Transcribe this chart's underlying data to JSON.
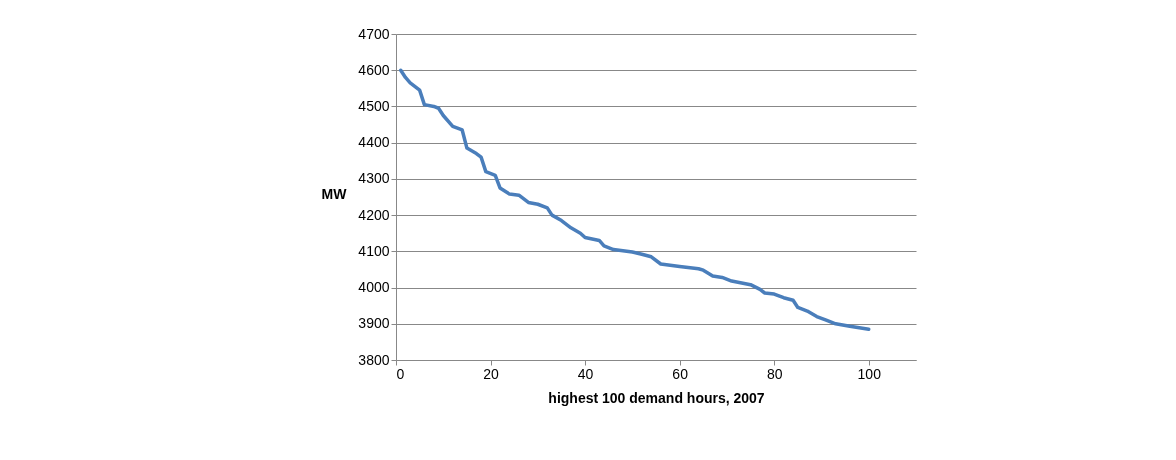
{
  "chart_data": {
    "type": "line",
    "xlabel": "highest 100 demand hours, 2007",
    "ylabel": "MW",
    "x": [
      1,
      2,
      3,
      5,
      6,
      8,
      9,
      10,
      12,
      14,
      15,
      17,
      18,
      19,
      21,
      22,
      24,
      26,
      28,
      30,
      32,
      33,
      35,
      37,
      39,
      40,
      43,
      44,
      46,
      50,
      52,
      54,
      56,
      60,
      64,
      65,
      67,
      69,
      71,
      75,
      77,
      78,
      80,
      82,
      84,
      85,
      87,
      89,
      91,
      93,
      96,
      100
    ],
    "series": [
      {
        "color": "#4a7ebb",
        "values": [
          4600,
          4580,
          4565,
          4545,
          4505,
          4500,
          4495,
          4475,
          4445,
          4435,
          4385,
          4370,
          4360,
          4320,
          4310,
          4275,
          4258,
          4255,
          4235,
          4230,
          4220,
          4200,
          4185,
          4165,
          4150,
          4138,
          4130,
          4115,
          4105,
          4098,
          4092,
          4085,
          4065,
          4058,
          4052,
          4048,
          4032,
          4028,
          4018,
          4008,
          3995,
          3985,
          3982,
          3972,
          3965,
          3945,
          3935,
          3920,
          3910,
          3900,
          3893,
          3885
        ]
      }
    ],
    "xlim": [
      0,
      110
    ],
    "xticks": [
      0,
      20,
      40,
      60,
      80,
      100
    ],
    "ylim": [
      3800,
      4700
    ],
    "yticks": [
      3800,
      3900,
      4000,
      4100,
      4200,
      4300,
      4400,
      4500,
      4600,
      4700
    ],
    "grid": "y",
    "marker": "none",
    "line_style": "solid"
  }
}
